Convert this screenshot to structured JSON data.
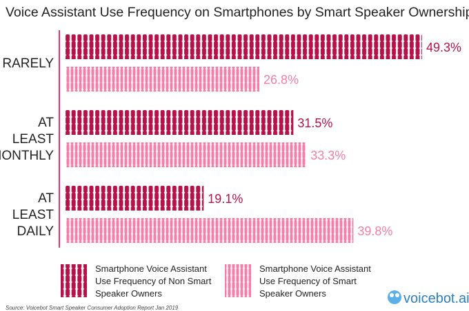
{
  "chart_data": {
    "type": "bar",
    "orientation": "horizontal",
    "title": "Voice Assistant Use Frequency on Smartphones by Smart Speaker Ownership",
    "categories": [
      [
        "RARELY"
      ],
      [
        "AT",
        "LEAST",
        "MONTHLY"
      ],
      [
        "AT",
        "LEAST",
        "DAILY"
      ]
    ],
    "series": [
      {
        "name": "Smartphone Voice Assistant Use Frequency of Non Smart Speaker Owners",
        "legend_lines": [
          "Smartphone Voice Assistant",
          "Use Frequency of Non Smart",
          "Speaker Owners"
        ],
        "values": [
          49.3,
          31.5,
          19.1
        ],
        "labels": [
          "49.3%",
          "31.5%",
          "19.1%"
        ],
        "color": "#b5124a"
      },
      {
        "name": "Smartphone Voice Assistant Use Frequency of Smart Speaker Owners",
        "legend_lines": [
          "Smartphone Voice Assistant",
          "Use Frequency of Smart",
          "Speaker Owners"
        ],
        "values": [
          26.8,
          33.3,
          39.8
        ],
        "labels": [
          "26.8%",
          "33.3%",
          "39.8%"
        ],
        "color": "#f57ea8"
      }
    ],
    "xlim": [
      0,
      50
    ],
    "grid": false,
    "legend": "bottom"
  },
  "source": "Source: Voicebot Smart Speaker Consumer Adoption Report Jan 2019",
  "logo": "voicebot.ai"
}
